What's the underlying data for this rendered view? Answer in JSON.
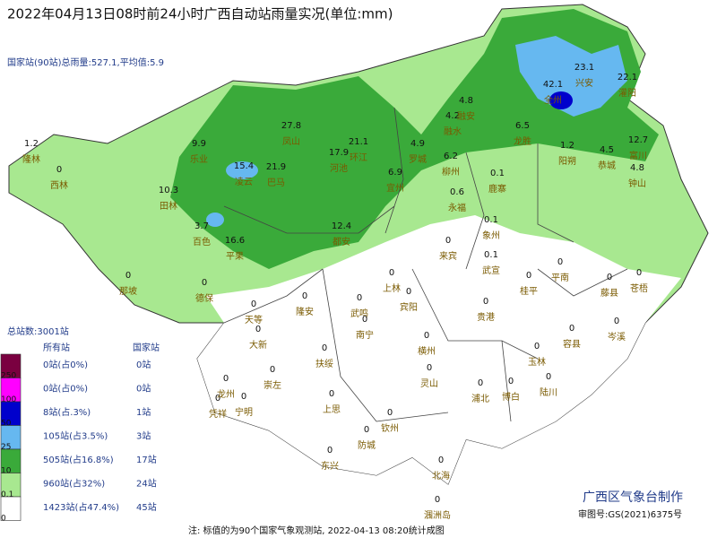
{
  "header": {
    "title": "2022年04月13日08时前24小时广西自动站雨量实况(单位:mm)",
    "summary": "国家站(90站)总雨量:527.1,平均值:5.9"
  },
  "legend": {
    "total": "总站数:3001站",
    "col_all": "所有站",
    "col_national": "国家站",
    "thresholds": [
      "250",
      "100",
      "50",
      "25",
      "10",
      "0.1",
      "0"
    ],
    "rows": [
      {
        "all": "0站(占0%)",
        "national": "0站"
      },
      {
        "all": "0站(占0%)",
        "national": "0站"
      },
      {
        "all": "8站(占.3%)",
        "national": "1站"
      },
      {
        "all": "105站(占3.5%)",
        "national": "3站"
      },
      {
        "all": "505站(占16.8%)",
        "national": "17站"
      },
      {
        "all": "960站(占32%)",
        "national": "24站"
      },
      {
        "all": "1423站(占47.4%)",
        "national": "45站"
      }
    ]
  },
  "stations": [
    {
      "name": "隆林",
      "value": "1.2"
    },
    {
      "name": "西林",
      "value": "0"
    },
    {
      "name": "乐业",
      "value": "9.9"
    },
    {
      "name": "凤山",
      "value": "27.8"
    },
    {
      "name": "环江",
      "value": "21.1"
    },
    {
      "name": "罗城",
      "value": "4.9"
    },
    {
      "name": "融水",
      "value": "4.2"
    },
    {
      "name": "融安",
      "value": "4.8"
    },
    {
      "name": "龙胜",
      "value": "6.5"
    },
    {
      "name": "全州",
      "value": "42.1"
    },
    {
      "name": "兴安",
      "value": "23.1"
    },
    {
      "name": "灌阳",
      "value": "22.1"
    },
    {
      "name": "恭城",
      "value": "4.5"
    },
    {
      "name": "钟山",
      "value": "4.8"
    },
    {
      "name": "富川",
      "value": "12.7"
    },
    {
      "name": "阳朔",
      "value": "1.2"
    },
    {
      "name": "柳州",
      "value": "6.2"
    },
    {
      "name": "永福",
      "value": "0.6"
    },
    {
      "name": "鹿寨",
      "value": "0.1"
    },
    {
      "name": "宜州",
      "value": "6.9"
    },
    {
      "name": "象州",
      "value": "0.1"
    },
    {
      "name": "来宾",
      "value": "0"
    },
    {
      "name": "武宣",
      "value": "0.1"
    },
    {
      "name": "河池",
      "value": "17.9"
    },
    {
      "name": "都安",
      "value": "12.4"
    },
    {
      "name": "百色",
      "value": "3.7"
    },
    {
      "name": "田林",
      "value": "10.3"
    },
    {
      "name": "凌云",
      "value": "15.4"
    },
    {
      "name": "巴马",
      "value": "21.9"
    },
    {
      "name": "平果",
      "value": "16.6"
    },
    {
      "name": "德保",
      "value": "0"
    },
    {
      "name": "那坡",
      "value": "0"
    },
    {
      "name": "天等",
      "value": "0"
    },
    {
      "name": "隆安",
      "value": "0"
    },
    {
      "name": "武鸣",
      "value": "0"
    },
    {
      "name": "上林",
      "value": "0"
    },
    {
      "name": "宾阳",
      "value": "0"
    },
    {
      "name": "南宁",
      "value": "0"
    },
    {
      "name": "横州",
      "value": "0"
    },
    {
      "name": "贵港",
      "value": "0"
    },
    {
      "name": "桂平",
      "value": "0"
    },
    {
      "name": "平南",
      "value": "0"
    },
    {
      "name": "藤县",
      "value": "0"
    },
    {
      "name": "苍梧",
      "value": "0"
    },
    {
      "name": "岑溪",
      "value": "0"
    },
    {
      "name": "容县",
      "value": "0"
    },
    {
      "name": "玉林",
      "value": "0"
    },
    {
      "name": "陆川",
      "value": "0"
    },
    {
      "name": "博白",
      "value": "0"
    },
    {
      "name": "灵山",
      "value": "0"
    },
    {
      "name": "浦北",
      "value": "0"
    },
    {
      "name": "钦州",
      "value": "0"
    },
    {
      "name": "防城",
      "value": "0"
    },
    {
      "name": "东兴",
      "value": "0"
    },
    {
      "name": "北海",
      "value": "0"
    },
    {
      "name": "涠洲岛",
      "value": "0"
    },
    {
      "name": "上思",
      "value": "0"
    },
    {
      "name": "宁明",
      "value": "0"
    },
    {
      "name": "凭祥",
      "value": "0"
    },
    {
      "name": "龙州",
      "value": "0"
    },
    {
      "name": "崇左",
      "value": "0"
    },
    {
      "name": "扶绥",
      "value": "0"
    },
    {
      "name": "大新",
      "value": "0"
    }
  ],
  "footer": {
    "credit": "广西区气象台制作",
    "approval": "审图号:GS(2021)6375号",
    "note": "注: 标值的为90个国家气象观测站, 2022-04-13 08:20统计成图"
  }
}
